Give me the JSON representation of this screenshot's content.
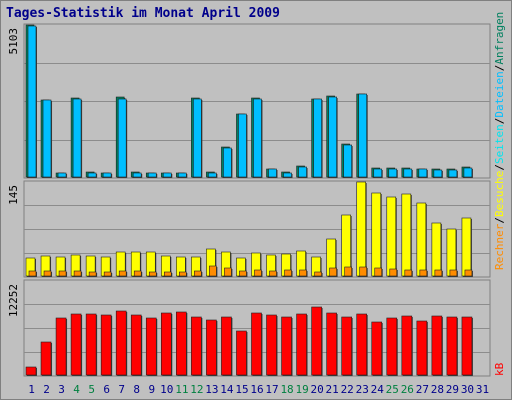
{
  "title": "Tages-Statistik im Monat April 2009",
  "colors": {
    "background": "#C0C0C0",
    "plot_background": "#C0C0C0",
    "frame_dark": "#808080",
    "grid": "#8C8C8C",
    "title": "#00008B",
    "anfragen": "#00805F",
    "dateien": "#00BFFF",
    "seiten": "#00E5EE",
    "besuche": "#FFFF00",
    "rechner": "#FF8C00",
    "kb": "#FF0000",
    "weekend_label": "#008040",
    "day_label": "#00008B"
  },
  "right_labels": {
    "top": [
      "Anfragen",
      "/",
      "Dateien",
      "/",
      "Seiten",
      "/",
      "Besuche",
      "/",
      "Rechner"
    ],
    "bottom": "kB"
  },
  "chart_data": [
    {
      "type": "bar",
      "panel": "top",
      "ymax_label": "5103",
      "ylim": [
        0,
        5103
      ],
      "x": [
        1,
        2,
        3,
        4,
        5,
        6,
        7,
        8,
        9,
        10,
        11,
        12,
        13,
        14,
        15,
        16,
        17,
        18,
        19,
        20,
        21,
        22,
        23,
        24,
        25,
        26,
        27,
        28,
        29,
        30
      ],
      "series": [
        {
          "name": "Anfragen",
          "values": [
            5103,
            2600,
            150,
            2650,
            170,
            140,
            2680,
            170,
            130,
            150,
            150,
            2640,
            170,
            1000,
            2120,
            2650,
            280,
            160,
            370,
            2630,
            2720,
            1100,
            2790,
            300,
            300,
            300,
            280,
            260,
            260,
            320
          ]
        },
        {
          "name": "Dateien",
          "values": [
            5060,
            2590,
            130,
            2630,
            150,
            130,
            2630,
            150,
            120,
            130,
            140,
            2620,
            150,
            980,
            2100,
            2630,
            260,
            150,
            350,
            2610,
            2690,
            1080,
            2770,
            280,
            280,
            280,
            260,
            250,
            250,
            300
          ]
        },
        {
          "name": "Seiten",
          "values": [
            0,
            0,
            0,
            0,
            0,
            0,
            0,
            0,
            0,
            0,
            0,
            0,
            0,
            0,
            0,
            0,
            0,
            0,
            0,
            0,
            0,
            0,
            0,
            0,
            0,
            0,
            0,
            0,
            0,
            0
          ]
        }
      ]
    },
    {
      "type": "bar",
      "panel": "middle",
      "ymax_label": "145",
      "ylim": [
        0,
        145
      ],
      "x": [
        1,
        2,
        3,
        4,
        5,
        6,
        7,
        8,
        9,
        10,
        11,
        12,
        13,
        14,
        15,
        16,
        17,
        18,
        19,
        20,
        21,
        22,
        23,
        24,
        25,
        26,
        27,
        28,
        29,
        30
      ],
      "series": [
        {
          "name": "Besuche",
          "values": [
            28,
            31,
            30,
            32,
            31,
            30,
            37,
            37,
            37,
            31,
            29,
            30,
            42,
            37,
            28,
            36,
            32,
            34,
            39,
            30,
            57,
            94,
            145,
            128,
            122,
            126,
            112,
            82,
            72,
            90
          ]
        },
        {
          "name": "Rechner",
          "values": [
            8,
            8,
            7,
            7,
            6,
            6,
            8,
            7,
            6,
            6,
            6,
            7,
            16,
            13,
            7,
            9,
            8,
            9,
            9,
            6,
            12,
            14,
            14,
            12,
            11,
            9,
            10,
            9,
            9,
            10
          ]
        }
      ]
    },
    {
      "type": "bar",
      "panel": "bottom",
      "ymax_label": "12252",
      "ylim": [
        0,
        12252
      ],
      "x": [
        1,
        2,
        3,
        4,
        5,
        6,
        7,
        8,
        9,
        10,
        11,
        12,
        13,
        14,
        15,
        16,
        17,
        18,
        19,
        20,
        21,
        22,
        23,
        24,
        25,
        26,
        27,
        28,
        29,
        30
      ],
      "series": [
        {
          "name": "kB",
          "values": [
            1000,
            4300,
            7400,
            7900,
            8000,
            7800,
            8300,
            7800,
            7400,
            8100,
            8200,
            7600,
            7200,
            7500,
            5700,
            8100,
            7800,
            7500,
            7900,
            8800,
            8100,
            7500,
            8000,
            6900,
            7400,
            7700,
            7100,
            7700,
            7600,
            7600
          ]
        }
      ]
    }
  ],
  "x_axis": {
    "labels": [
      "1",
      "2",
      "3",
      "4",
      "5",
      "6",
      "7",
      "8",
      "9",
      "10",
      "11",
      "12",
      "13",
      "14",
      "15",
      "16",
      "17",
      "18",
      "19",
      "20",
      "21",
      "22",
      "23",
      "24",
      "25",
      "26",
      "27",
      "28",
      "29",
      "30",
      "31"
    ],
    "weekend_days": [
      4,
      5,
      11,
      12,
      18,
      19,
      25,
      26
    ]
  }
}
